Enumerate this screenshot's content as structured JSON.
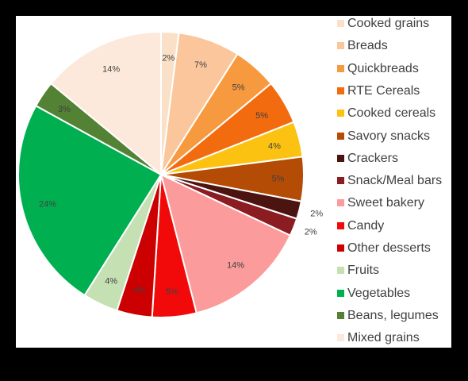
{
  "chart_data": {
    "type": "pie",
    "title": "",
    "slices": [
      {
        "label": "Cooked grains",
        "value": 2,
        "display": "2%",
        "color": "#fbe0c8"
      },
      {
        "label": "Breads",
        "value": 7,
        "display": "7%",
        "color": "#fbc69c"
      },
      {
        "label": "Quickbreads",
        "value": 5,
        "display": "5%",
        "color": "#f79a3f"
      },
      {
        "label": "RTE Cereals",
        "value": 5,
        "display": "5%",
        "color": "#f26b0f"
      },
      {
        "label": "Cooked cereals",
        "value": 4,
        "display": "4%",
        "color": "#fcc212"
      },
      {
        "label": "Savory snacks",
        "value": 5,
        "display": "5%",
        "color": "#b44c05"
      },
      {
        "label": "Crackers",
        "value": 2,
        "display": "2%",
        "color": "#4b1410"
      },
      {
        "label": "Snack/Meal bars",
        "value": 2,
        "display": "2%",
        "color": "#8b1c22"
      },
      {
        "label": "Sweet bakery",
        "value": 14,
        "display": "14%",
        "color": "#fb9b9b"
      },
      {
        "label": "Candy",
        "value": 5,
        "display": "5%",
        "color": "#f20a0a"
      },
      {
        "label": "Other desserts",
        "value": 4,
        "display": "4%",
        "color": "#cc0000"
      },
      {
        "label": "Fruits",
        "value": 4,
        "display": "4%",
        "color": "#c5e0b3"
      },
      {
        "label": "Vegetables",
        "value": 24,
        "display": "24%",
        "color": "#00b050"
      },
      {
        "label": "Beans, legumes",
        "value": 3,
        "display": "3%",
        "color": "#548235"
      },
      {
        "label": "Mixed grains",
        "value": 14,
        "display": "14%",
        "color": "#fde9dc"
      }
    ],
    "legend_placement": "right"
  }
}
